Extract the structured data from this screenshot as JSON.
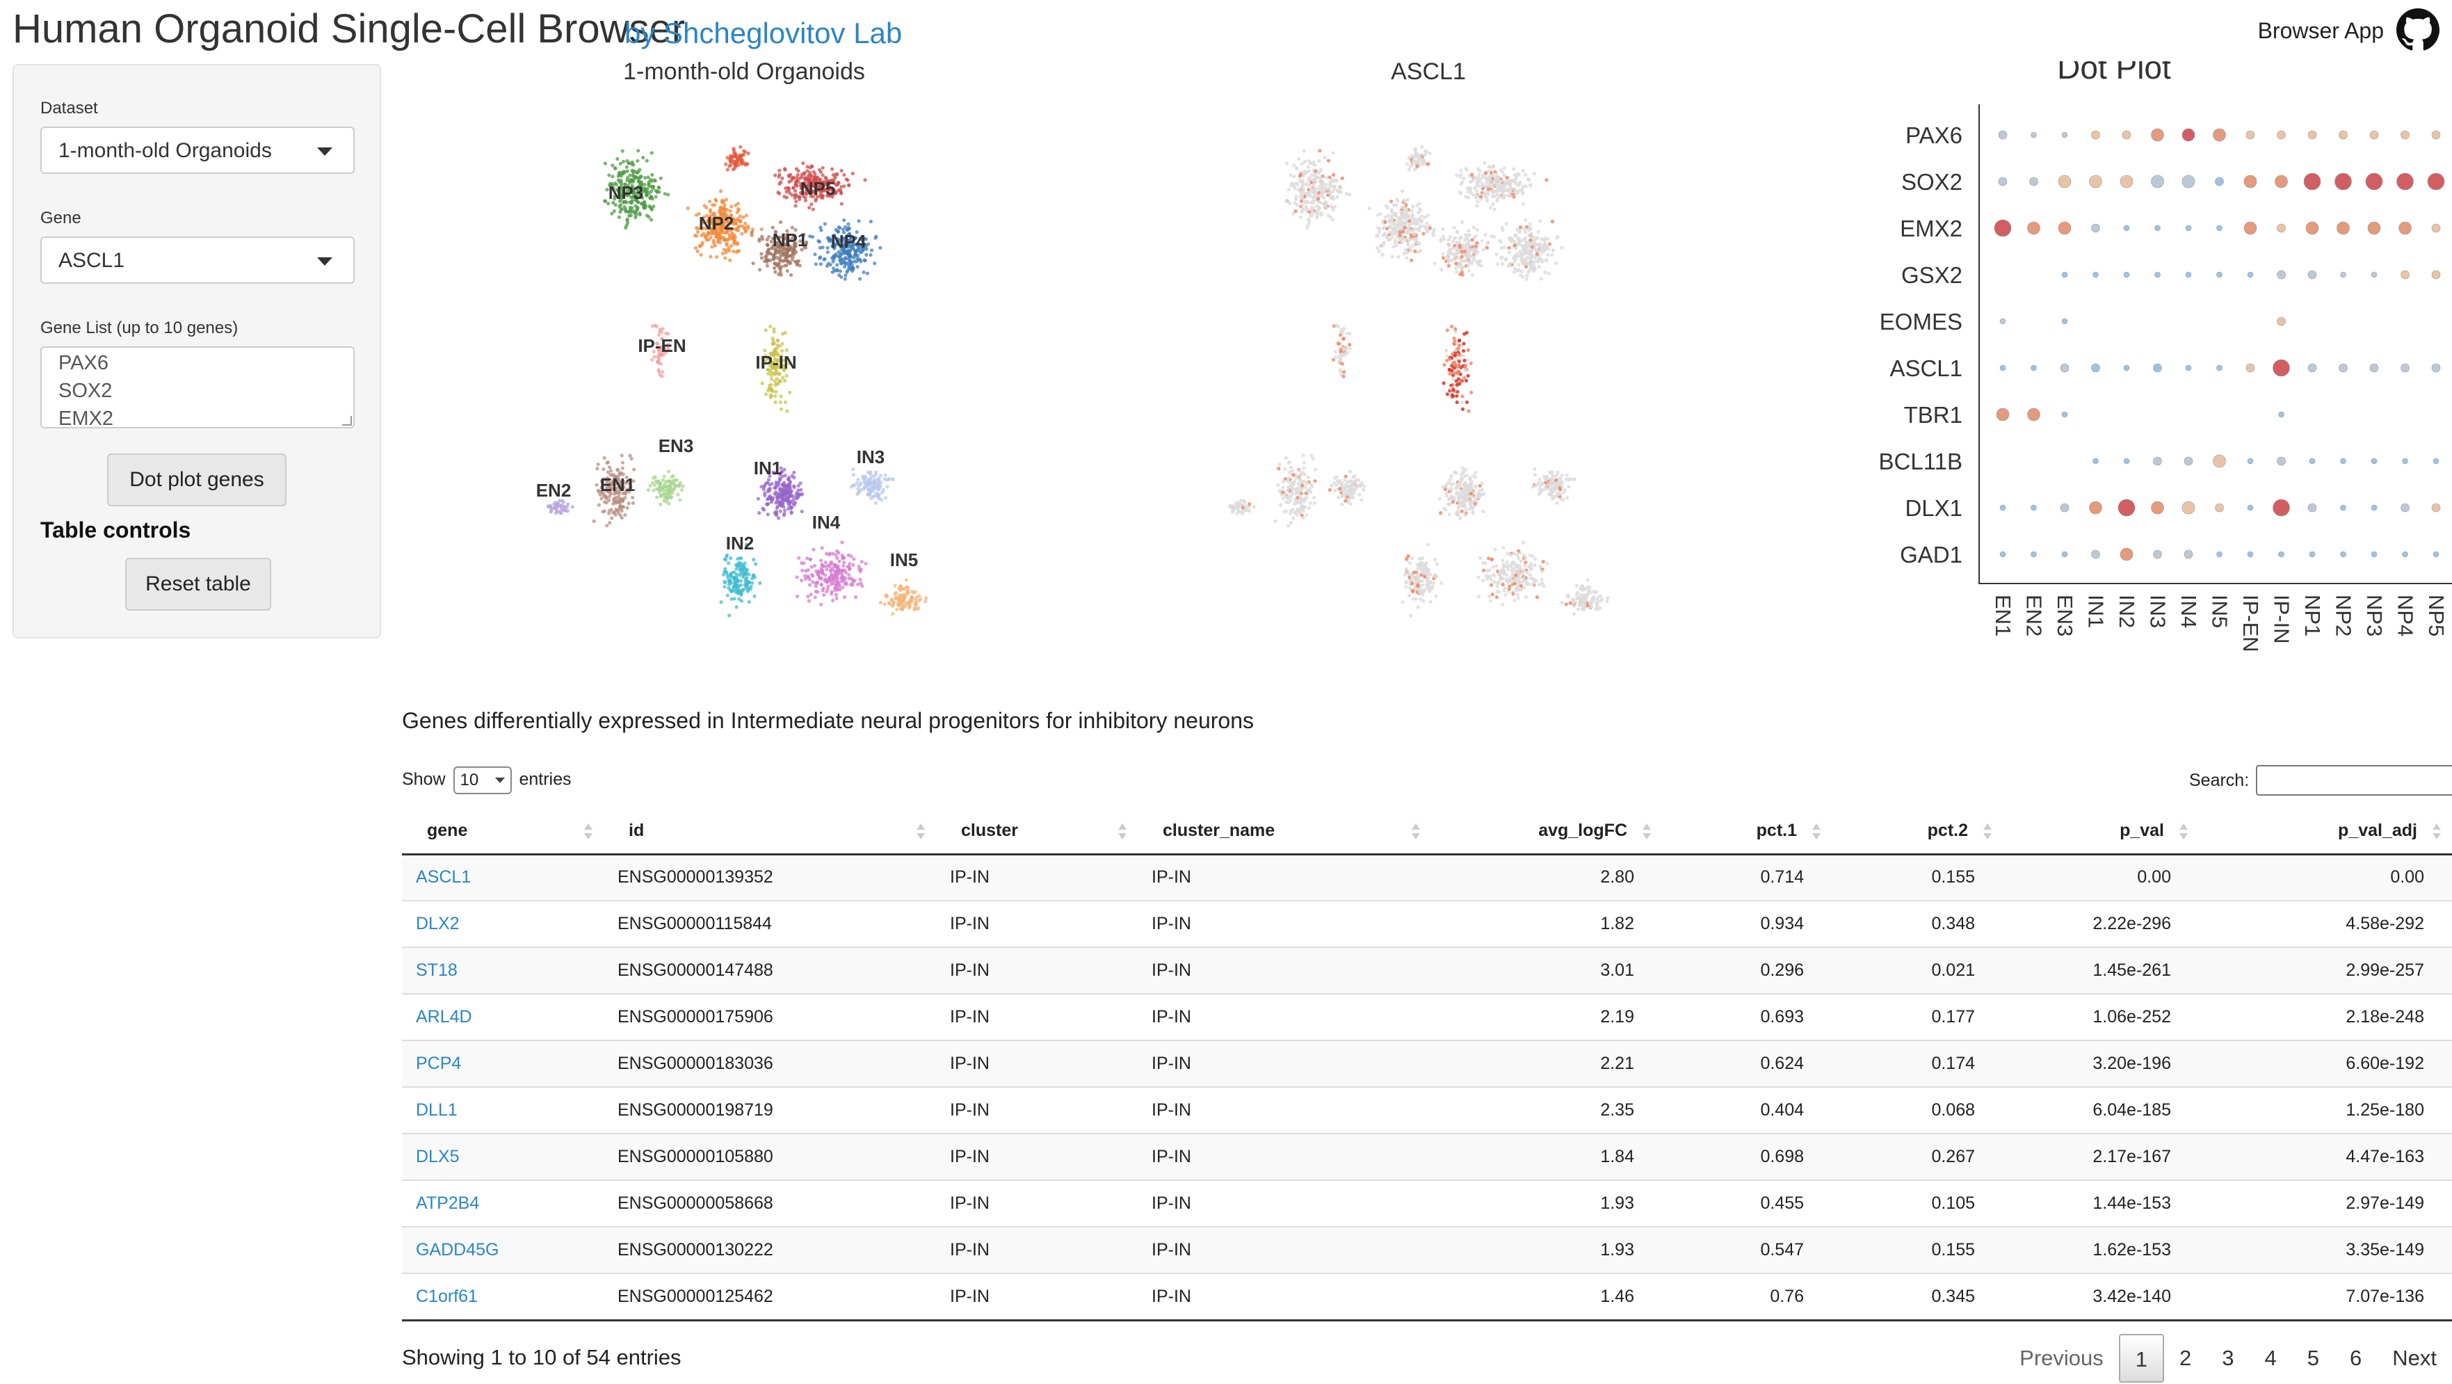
{
  "header": {
    "title": "Human Organoid Single-Cell Browser",
    "lab": "by Shcheglovitov Lab",
    "browser_app": "Browser App",
    "github_icon": "github-icon"
  },
  "sidebar": {
    "dataset_label": "Dataset",
    "dataset_value": "1-month-old Organoids",
    "gene_label": "Gene",
    "gene_value": "ASCL1",
    "gene_list_label": "Gene List (up to 10 genes)",
    "gene_list_lines": [
      "PAX6",
      "SOX2",
      "EMX2"
    ],
    "dot_plot_button": "Dot plot genes",
    "table_controls": "Table controls",
    "reset_button": "Reset table"
  },
  "plots": {
    "umap_title": "1-month-old Organoids",
    "expr_title": "ASCL1",
    "dot_title": "Dot Plot"
  },
  "cluster_labels": [
    "NP3",
    "NP5",
    "NP2",
    "NP1",
    "NP4",
    "IP-EN",
    "IP-IN",
    "EN3",
    "EN2",
    "EN1",
    "IN1",
    "IN3",
    "IN4",
    "IN2",
    "IN5"
  ],
  "chart_data": {
    "type": "dot",
    "title": "Dot Plot",
    "genes": [
      "PAX6",
      "SOX2",
      "EMX2",
      "GSX2",
      "EOMES",
      "ASCL1",
      "TBR1",
      "BCL11B",
      "DLX1",
      "GAD1"
    ],
    "clusters": [
      "EN1",
      "EN2",
      "EN3",
      "IN1",
      "IN2",
      "IN3",
      "IN4",
      "IN5",
      "IP-EN",
      "IP-IN",
      "NP1",
      "NP2",
      "NP3",
      "NP4",
      "NP5"
    ],
    "size": [
      [
        2,
        1,
        1,
        2,
        2,
        3,
        3,
        3,
        2,
        2,
        2,
        2,
        2,
        2,
        2
      ],
      [
        2,
        2,
        3,
        3,
        3,
        3,
        3,
        2,
        3,
        3,
        4,
        4,
        4,
        4,
        4
      ],
      [
        4,
        3,
        3,
        2,
        1,
        1,
        1,
        1,
        3,
        2,
        3,
        3,
        3,
        3,
        2
      ],
      [
        0,
        0,
        1,
        1,
        1,
        1,
        1,
        1,
        1,
        2,
        2,
        1,
        1,
        2,
        2
      ],
      [
        1,
        0,
        1,
        0,
        0,
        0,
        0,
        0,
        0,
        2,
        0,
        0,
        0,
        0,
        0
      ],
      [
        1,
        1,
        2,
        2,
        1,
        2,
        1,
        1,
        2,
        4,
        2,
        2,
        2,
        2,
        2
      ],
      [
        3,
        3,
        1,
        0,
        0,
        0,
        0,
        0,
        0,
        1,
        0,
        0,
        0,
        0,
        0
      ],
      [
        0,
        0,
        0,
        1,
        1,
        2,
        2,
        3,
        1,
        2,
        1,
        1,
        1,
        1,
        1
      ],
      [
        1,
        1,
        2,
        3,
        4,
        3,
        3,
        2,
        1,
        4,
        2,
        1,
        1,
        2,
        2
      ],
      [
        1,
        1,
        1,
        2,
        3,
        2,
        2,
        1,
        1,
        1,
        1,
        1,
        1,
        1,
        1
      ]
    ],
    "expr": [
      [
        1,
        1,
        1,
        2,
        2,
        3,
        4,
        3,
        2,
        2,
        2,
        2,
        2,
        2,
        2
      ],
      [
        1,
        1,
        2,
        2,
        2,
        1,
        1,
        0,
        3,
        3,
        4,
        4,
        4,
        4,
        4
      ],
      [
        4,
        3,
        3,
        1,
        0,
        0,
        0,
        0,
        3,
        2,
        3,
        3,
        3,
        3,
        2
      ],
      [
        0,
        0,
        0,
        0,
        0,
        0,
        0,
        0,
        0,
        1,
        1,
        1,
        1,
        2,
        2
      ],
      [
        1,
        0,
        0,
        0,
        0,
        0,
        0,
        0,
        0,
        2,
        0,
        0,
        0,
        0,
        0
      ],
      [
        0,
        0,
        1,
        0,
        0,
        0,
        0,
        0,
        2,
        4,
        1,
        1,
        1,
        1,
        1
      ],
      [
        3,
        3,
        0,
        0,
        0,
        0,
        0,
        0,
        0,
        0,
        0,
        0,
        0,
        0,
        0
      ],
      [
        0,
        0,
        0,
        0,
        0,
        1,
        1,
        2,
        0,
        1,
        0,
        0,
        0,
        0,
        0
      ],
      [
        0,
        0,
        1,
        3,
        4,
        3,
        2,
        2,
        0,
        4,
        1,
        0,
        0,
        1,
        2
      ],
      [
        0,
        0,
        0,
        1,
        3,
        1,
        1,
        0,
        0,
        0,
        0,
        0,
        0,
        0,
        0
      ]
    ]
  },
  "table": {
    "description": "Genes differentially expressed in Intermediate neural progenitors for inhibitory neurons",
    "show_label": "Show",
    "page_length": "10",
    "entries_label": "entries",
    "search_label": "Search:",
    "columns": [
      "gene",
      "id",
      "cluster",
      "cluster_name",
      "avg_logFC",
      "pct.1",
      "pct.2",
      "p_val",
      "p_val_adj"
    ],
    "rows": [
      [
        "ASCL1",
        "ENSG00000139352",
        "IP-IN",
        "IP-IN",
        "2.80",
        "0.714",
        "0.155",
        "0.00",
        "0.00"
      ],
      [
        "DLX2",
        "ENSG00000115844",
        "IP-IN",
        "IP-IN",
        "1.82",
        "0.934",
        "0.348",
        "2.22e-296",
        "4.58e-292"
      ],
      [
        "ST18",
        "ENSG00000147488",
        "IP-IN",
        "IP-IN",
        "3.01",
        "0.296",
        "0.021",
        "1.45e-261",
        "2.99e-257"
      ],
      [
        "ARL4D",
        "ENSG00000175906",
        "IP-IN",
        "IP-IN",
        "2.19",
        "0.693",
        "0.177",
        "1.06e-252",
        "2.18e-248"
      ],
      [
        "PCP4",
        "ENSG00000183036",
        "IP-IN",
        "IP-IN",
        "2.21",
        "0.624",
        "0.174",
        "3.20e-196",
        "6.60e-192"
      ],
      [
        "DLL1",
        "ENSG00000198719",
        "IP-IN",
        "IP-IN",
        "2.35",
        "0.404",
        "0.068",
        "6.04e-185",
        "1.25e-180"
      ],
      [
        "DLX5",
        "ENSG00000105880",
        "IP-IN",
        "IP-IN",
        "1.84",
        "0.698",
        "0.267",
        "2.17e-167",
        "4.47e-163"
      ],
      [
        "ATP2B4",
        "ENSG00000058668",
        "IP-IN",
        "IP-IN",
        "1.93",
        "0.455",
        "0.105",
        "1.44e-153",
        "2.97e-149"
      ],
      [
        "GADD45G",
        "ENSG00000130222",
        "IP-IN",
        "IP-IN",
        "1.93",
        "0.547",
        "0.155",
        "1.62e-153",
        "3.35e-149"
      ],
      [
        "C1orf61",
        "ENSG00000125462",
        "IP-IN",
        "IP-IN",
        "1.46",
        "0.76",
        "0.345",
        "3.42e-140",
        "7.07e-136"
      ]
    ],
    "info": "Showing 1 to 10 of 54 entries",
    "pager": {
      "previous": "Previous",
      "pages": [
        "1",
        "2",
        "3",
        "4",
        "5",
        "6"
      ],
      "current": "1",
      "next": "Next"
    }
  },
  "colors": {
    "link": "#2a86c6",
    "expr_high": "#d73027",
    "expr_low": "#dddddd"
  }
}
